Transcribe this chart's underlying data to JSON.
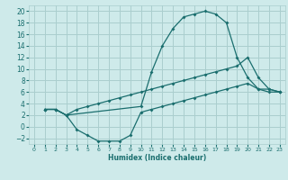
{
  "xlabel": "Humidex (Indice chaleur)",
  "xlim": [
    -0.5,
    23.5
  ],
  "ylim": [
    -3,
    21
  ],
  "xticks": [
    0,
    1,
    2,
    3,
    4,
    5,
    6,
    7,
    8,
    9,
    10,
    11,
    12,
    13,
    14,
    15,
    16,
    17,
    18,
    19,
    20,
    21,
    22,
    23
  ],
  "yticks": [
    -2,
    0,
    2,
    4,
    6,
    8,
    10,
    12,
    14,
    16,
    18,
    20
  ],
  "background_color": "#ceeaea",
  "grid_color": "#aacece",
  "line_color": "#1a6e6e",
  "line1_x": [
    1,
    2,
    3,
    10,
    11,
    12,
    13,
    14,
    15,
    16,
    17,
    18,
    19,
    20,
    21,
    22,
    23
  ],
  "line1_y": [
    3,
    3,
    2,
    3.5,
    9.5,
    14,
    17,
    19,
    19.5,
    20,
    19.5,
    18,
    12,
    8.5,
    6.5,
    6.5,
    6
  ],
  "line2_x": [
    1,
    2,
    3,
    4,
    5,
    6,
    7,
    8,
    9,
    10,
    11,
    12,
    13,
    14,
    15,
    16,
    17,
    18,
    19,
    20,
    21,
    22,
    23
  ],
  "line2_y": [
    3,
    3,
    2,
    3,
    3.5,
    4,
    4.5,
    5,
    5.5,
    6,
    6.5,
    7,
    7.5,
    8,
    8.5,
    9,
    9.5,
    10,
    10.5,
    12,
    8.5,
    6.5,
    6
  ],
  "line3_x": [
    1,
    2,
    3,
    4,
    5,
    6,
    7,
    8,
    9,
    10,
    11,
    12,
    13,
    14,
    15,
    16,
    17,
    18,
    19,
    20,
    21,
    22,
    23
  ],
  "line3_y": [
    3,
    3,
    2,
    -0.5,
    -1.5,
    -2.5,
    -2.5,
    -2.5,
    -1.5,
    2.5,
    3,
    3.5,
    4,
    4.5,
    5,
    5.5,
    6,
    6.5,
    7,
    7.5,
    6.5,
    6,
    6
  ]
}
